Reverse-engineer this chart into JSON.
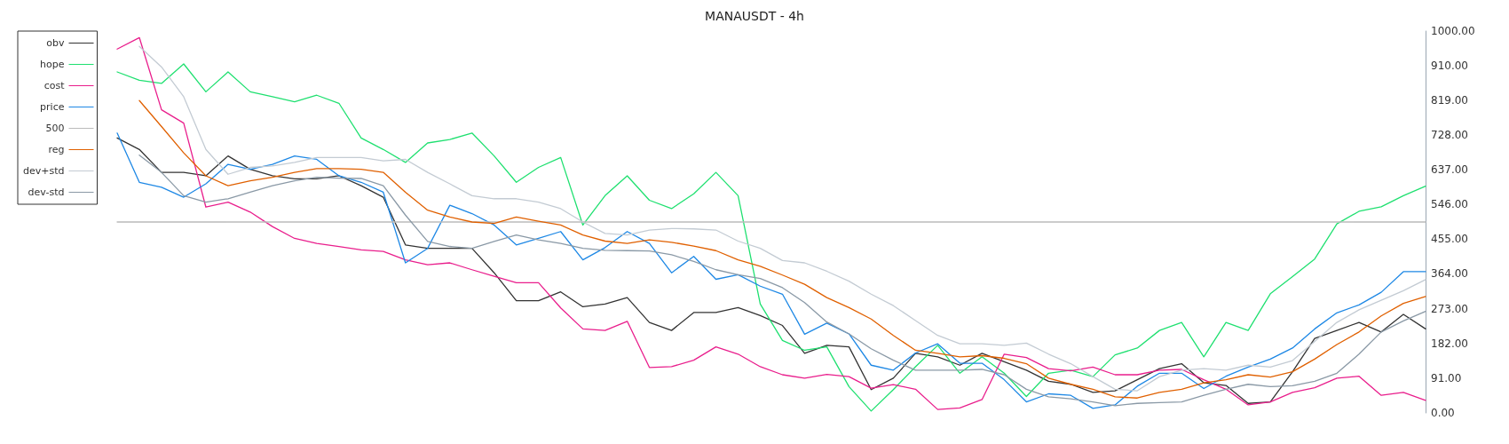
{
  "chart_data": {
    "type": "line",
    "title": "MANAUSDT - 4h",
    "categories": [
      null,
      null,
      null,
      null,
      null,
      null,
      null,
      null,
      null,
      null,
      null,
      null,
      null,
      null,
      null,
      null,
      null,
      null,
      null,
      null,
      null,
      null,
      null,
      null,
      null,
      null,
      null,
      null,
      null,
      null,
      null,
      null,
      null,
      null,
      null,
      null,
      null,
      null,
      null,
      null,
      null,
      null,
      null,
      null,
      null,
      null,
      null,
      null,
      null,
      null,
      null,
      null,
      null,
      null,
      null,
      null,
      null,
      null,
      null,
      null
    ],
    "series": [
      {
        "name": "obv",
        "color": "#333333",
        "values": [
          720,
          690,
          630,
          630,
          621,
          673,
          638,
          621,
          613,
          613,
          621,
          595,
          565,
          440,
          431,
          431,
          431,
          367,
          294,
          294,
          317,
          278,
          285,
          302,
          237,
          216,
          263,
          263,
          276,
          255,
          229,
          156,
          177,
          173,
          61,
          91,
          156,
          147,
          125,
          156,
          134,
          112,
          83,
          75,
          54,
          58,
          87,
          116,
          129,
          79,
          72,
          25,
          29,
          108,
          195,
          216,
          237,
          212,
          258,
          220
        ]
      },
      {
        "name": "hope",
        "color": "#1fe070",
        "values": [
          893,
          871,
          863,
          914,
          841,
          893,
          841,
          828,
          815,
          832,
          811,
          720,
          690,
          656,
          707,
          716,
          733,
          673,
          604,
          643,
          669,
          492,
          569,
          621,
          557,
          535,
          574,
          630,
          569,
          285,
          190,
          164,
          173,
          69,
          5,
          61,
          121,
          177,
          104,
          147,
          104,
          43,
          104,
          112,
          95,
          152,
          170,
          216,
          237,
          147,
          237,
          216,
          312,
          357,
          403,
          495,
          528,
          540,
          569,
          594
        ]
      },
      {
        "name": "cost",
        "color": "#e91e8c",
        "values": [
          953,
          983,
          794,
          759,
          539,
          552,
          526,
          488,
          457,
          444,
          436,
          427,
          423,
          401,
          388,
          393,
          375,
          358,
          341,
          341,
          275,
          220,
          216,
          240,
          119,
          121,
          138,
          173,
          154,
          121,
          100,
          91,
          101,
          95,
          65,
          74,
          62,
          9,
          13,
          35,
          154,
          145,
          116,
          110,
          120,
          100,
          100,
          112,
          114,
          87,
          62,
          21,
          29,
          54,
          66,
          91,
          96,
          46,
          54,
          33
        ]
      },
      {
        "name": "price",
        "color": "#1e88e5",
        "values": [
          733,
          604,
          591,
          565,
          600,
          651,
          638,
          651,
          673,
          664,
          621,
          604,
          578,
          393,
          431,
          544,
          522,
          492,
          440,
          457,
          475,
          401,
          433,
          475,
          444,
          367,
          410,
          350,
          362,
          332,
          311,
          206,
          235,
          207,
          125,
          112,
          157,
          181,
          130,
          130,
          87,
          29,
          50,
          46,
          12,
          21,
          70,
          104,
          104,
          64,
          96,
          120,
          141,
          170,
          220,
          262,
          283,
          316,
          370,
          370
        ]
      },
      {
        "name": "500",
        "color": "#bbbbbb",
        "values": [
          500,
          500,
          500,
          500,
          500,
          500,
          500,
          500,
          500,
          500,
          500,
          500,
          500,
          500,
          500,
          500,
          500,
          500,
          500,
          500,
          500,
          500,
          500,
          500,
          500,
          500,
          500,
          500,
          500,
          500,
          500,
          500,
          500,
          500,
          500,
          500,
          500,
          500,
          500,
          500,
          500,
          500,
          500,
          500,
          500,
          500,
          500,
          500,
          500,
          500,
          500,
          500,
          500,
          500,
          500,
          500,
          500,
          500,
          500,
          500
        ]
      },
      {
        "name": "reg",
        "color": "#e06000",
        "values": [
          null,
          818,
          750,
          681,
          621,
          595,
          608,
          617,
          630,
          640,
          640,
          638,
          630,
          578,
          531,
          513,
          500,
          496,
          513,
          502,
          492,
          466,
          450,
          444,
          453,
          447,
          437,
          425,
          401,
          384,
          361,
          337,
          302,
          276,
          246,
          203,
          164,
          156,
          147,
          150,
          143,
          129,
          91,
          75,
          62,
          42,
          39,
          54,
          62,
          79,
          87,
          100,
          94,
          108,
          141,
          179,
          212,
          254,
          287,
          305
        ]
      },
      {
        "name": "dev+std",
        "color": "#c3cbd3",
        "values": [
          null,
          960,
          906,
          828,
          690,
          625,
          643,
          647,
          656,
          669,
          669,
          669,
          660,
          664,
          630,
          600,
          569,
          561,
          561,
          552,
          535,
          500,
          470,
          466,
          479,
          483,
          482,
          479,
          450,
          431,
          399,
          393,
          371,
          345,
          311,
          281,
          242,
          203,
          181,
          181,
          177,
          183,
          154,
          129,
          95,
          62,
          58,
          95,
          112,
          116,
          112,
          125,
          120,
          137,
          187,
          237,
          270,
          295,
          320,
          349
        ]
      },
      {
        "name": "dev-std",
        "color": "#8a99a6",
        "values": [
          null,
          675,
          630,
          569,
          552,
          561,
          578,
          595,
          608,
          617,
          615,
          614,
          595,
          518,
          449,
          436,
          431,
          449,
          466,
          453,
          444,
          431,
          426,
          425,
          424,
          414,
          397,
          375,
          362,
          352,
          328,
          289,
          238,
          207,
          168,
          138,
          112,
          112,
          112,
          114,
          100,
          62,
          42,
          37,
          29,
          19,
          25,
          27,
          29,
          46,
          62,
          75,
          69,
          71,
          83,
          104,
          154,
          212,
          241,
          266
        ]
      }
    ],
    "ylim": [
      0,
      1000
    ],
    "yticks": [
      {
        "value": 0,
        "label": "0.00"
      },
      {
        "value": 91,
        "label": "91.00"
      },
      {
        "value": 182,
        "label": "182.00"
      },
      {
        "value": 273,
        "label": "273.00"
      },
      {
        "value": 364,
        "label": "364.00"
      },
      {
        "value": 455,
        "label": "455.00"
      },
      {
        "value": 546,
        "label": "546.00"
      },
      {
        "value": 637,
        "label": "637.00"
      },
      {
        "value": 728,
        "label": "728.00"
      },
      {
        "value": 819,
        "label": "819.00"
      },
      {
        "value": 910,
        "label": "910.00"
      },
      {
        "value": 1000,
        "label": "1000.00"
      }
    ],
    "tick_labels": "y",
    "grid": false,
    "legend": "top left",
    "marker": "none",
    "line_style": "solid"
  }
}
